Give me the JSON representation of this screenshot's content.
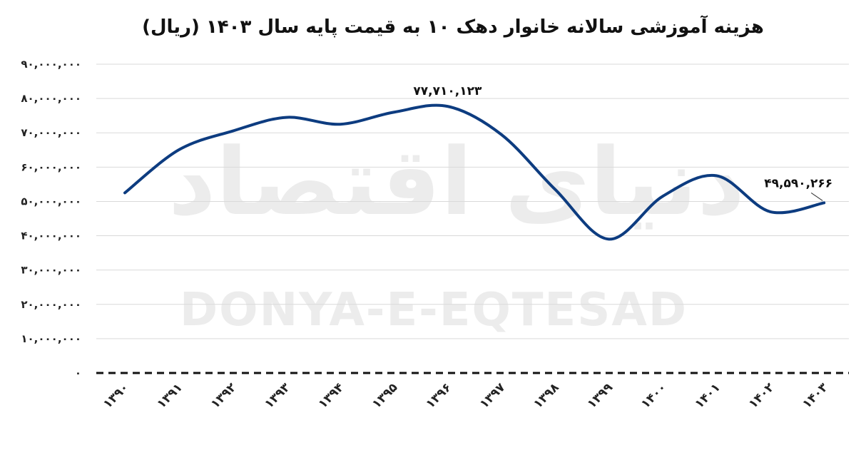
{
  "watermark": {
    "logo_text": "دنیای اقتصاد",
    "latin_text": "DONYA-E-EQTESAD"
  },
  "chart_data": {
    "type": "line",
    "title": "هزینه آموزشی سالانه خانوار دهک ۱۰ به قیمت پایه سال ۱۴۰۳ (ریال)",
    "xlabel": "",
    "ylabel": "",
    "categories": [
      "۱۳۹۰",
      "۱۳۹۱",
      "۱۳۹۲",
      "۱۳۹۳",
      "۱۳۹۴",
      "۱۳۹۵",
      "۱۳۹۶",
      "۱۳۹۷",
      "۱۳۹۸",
      "۱۳۹۹",
      "۱۴۰۰",
      "۱۴۰۱",
      "۱۴۰۲",
      "۱۴۰۳"
    ],
    "values": [
      52500000,
      65000000,
      70500000,
      74500000,
      72500000,
      76000000,
      77710123,
      69500000,
      53500000,
      39000000,
      51500000,
      57500000,
      47000000,
      49590266
    ],
    "ylim": [
      0,
      90000000
    ],
    "yticks": [
      0,
      10000000,
      20000000,
      30000000,
      40000000,
      50000000,
      60000000,
      70000000,
      80000000,
      90000000
    ],
    "ytick_labels": [
      "۰",
      "۱۰,۰۰۰,۰۰۰",
      "۲۰,۰۰۰,۰۰۰",
      "۳۰,۰۰۰,۰۰۰",
      "۴۰,۰۰۰,۰۰۰",
      "۵۰,۰۰۰,۰۰۰",
      "۶۰,۰۰۰,۰۰۰",
      "۷۰,۰۰۰,۰۰۰",
      "۸۰,۰۰۰,۰۰۰",
      "۹۰,۰۰۰,۰۰۰"
    ],
    "grid": true,
    "zero_line_style": "dashed",
    "series_color": "#0d3c80",
    "data_labels": [
      {
        "index": 6,
        "text": "۷۷,۷۱۰,۱۲۳"
      },
      {
        "index": 13,
        "text": "۴۹,۵۹۰,۲۶۶"
      }
    ]
  }
}
